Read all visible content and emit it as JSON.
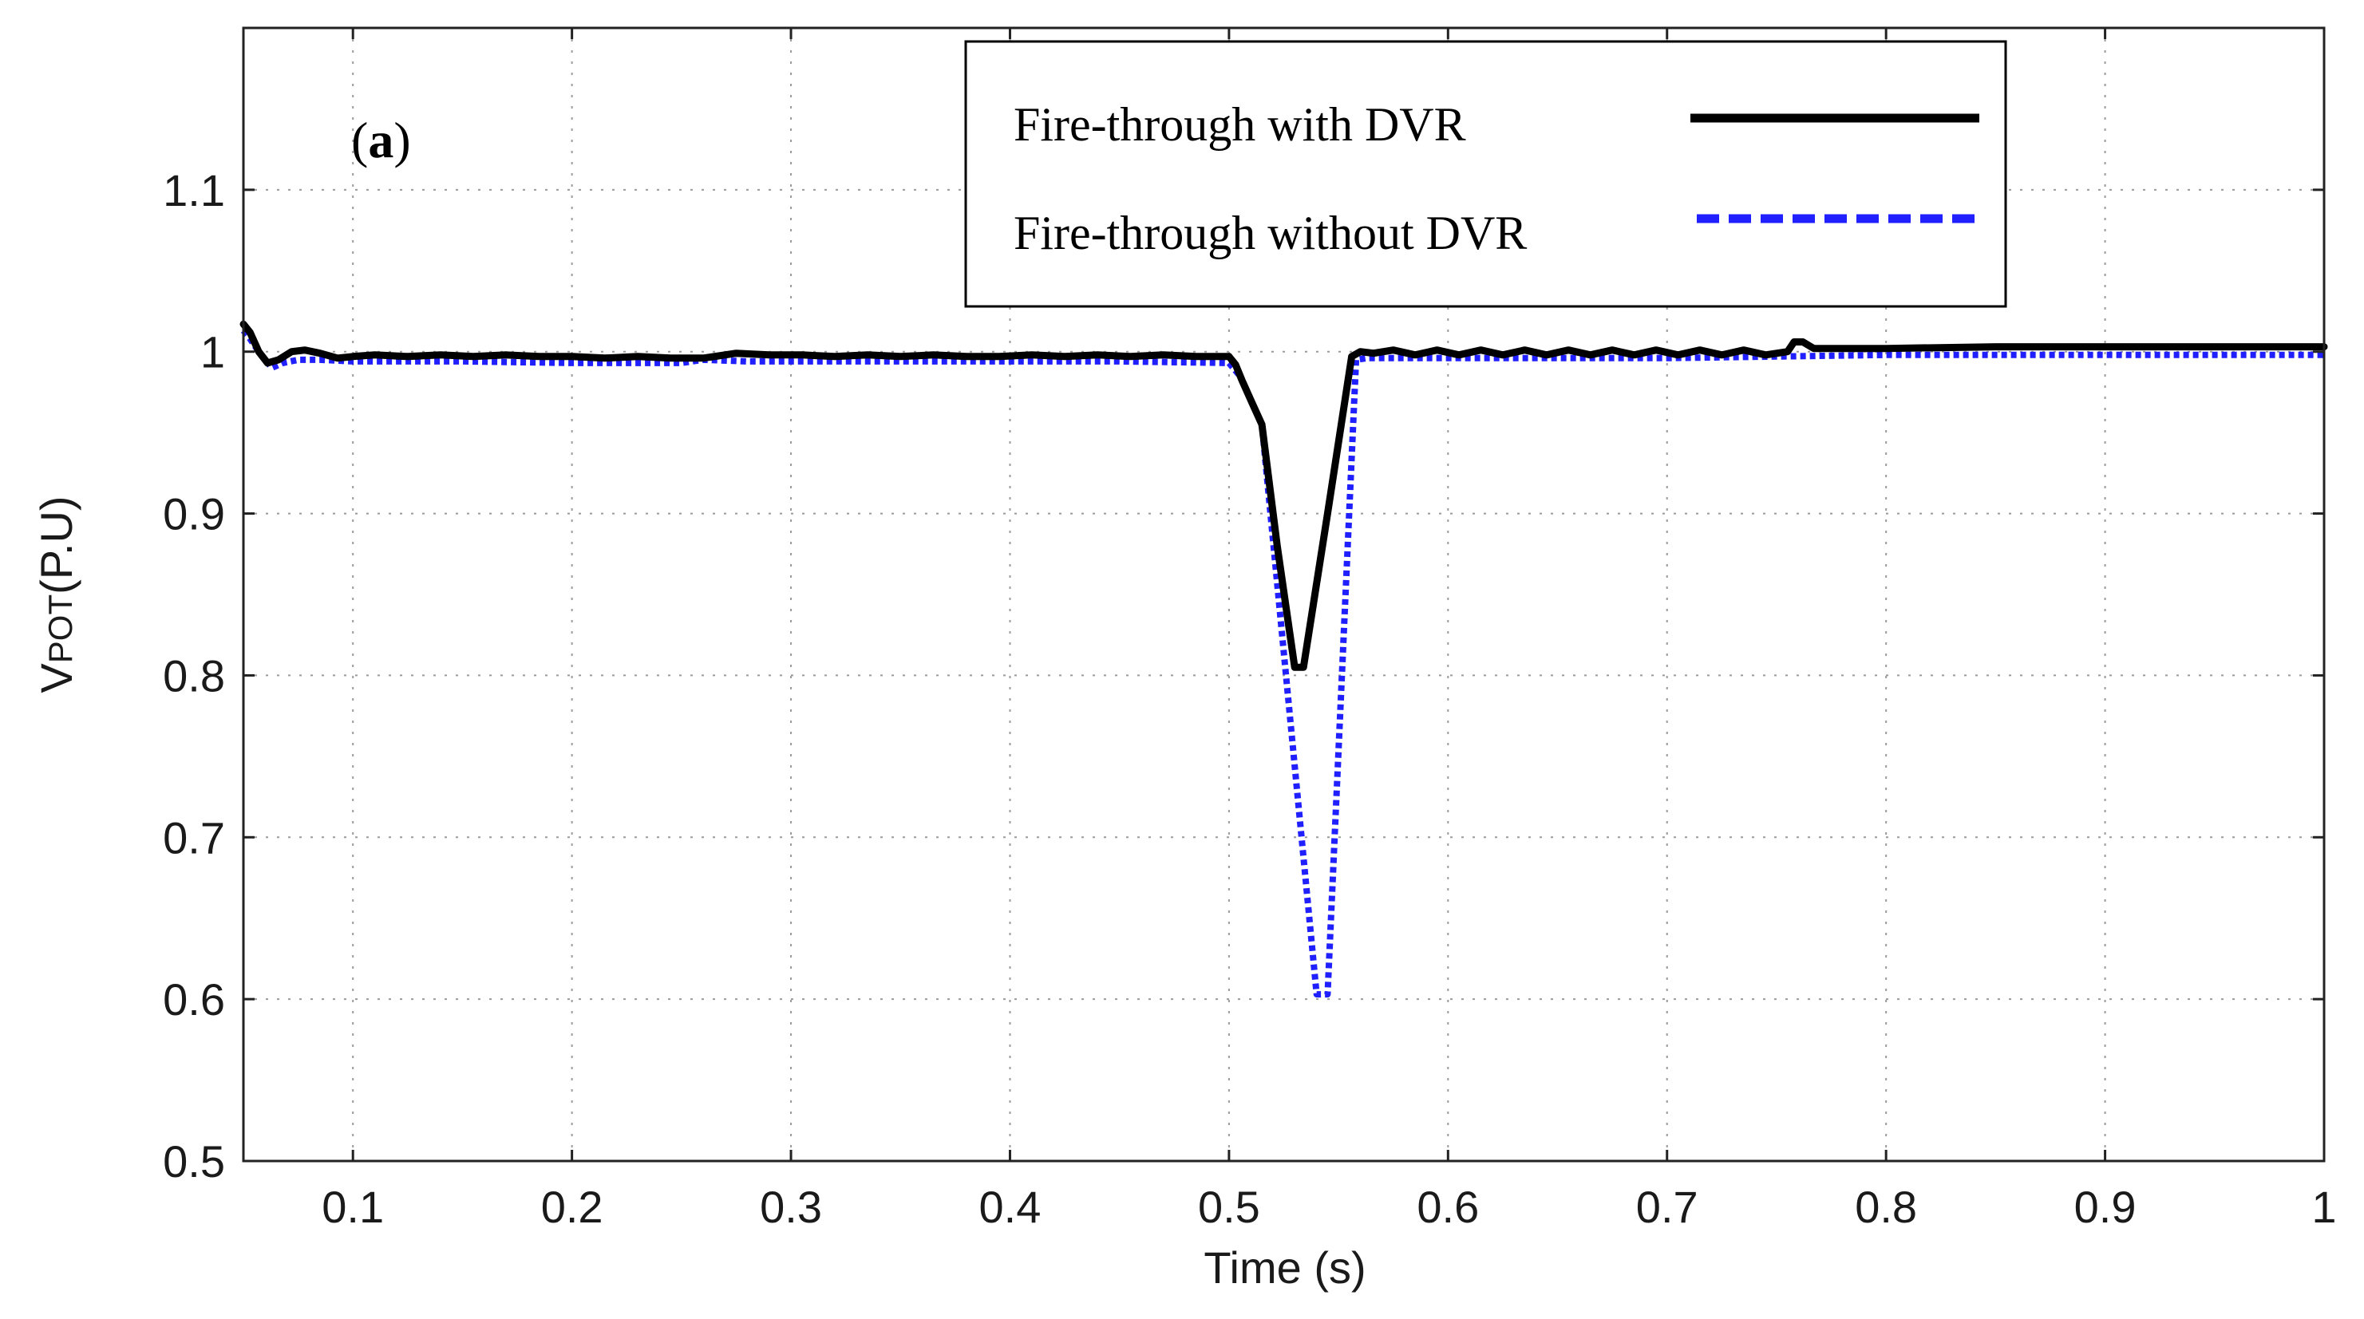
{
  "chart_data": {
    "type": "line",
    "panel_label_open": "(",
    "panel_label_letter": "a",
    "panel_label_close": ")",
    "xlabel": "Time (s)",
    "ylabel_main": "V",
    "ylabel_sub": "POT",
    "ylabel_unit": "(P.U)",
    "xlim": [
      0.05,
      1.0
    ],
    "ylim": [
      0.5,
      1.2
    ],
    "grid": true,
    "legend_position": "top-right",
    "x_ticks": [
      0.1,
      0.2,
      0.3,
      0.4,
      0.5,
      0.6,
      0.7,
      0.8,
      0.9,
      1.0
    ],
    "x_tick_labels": [
      "0.1",
      "0.2",
      "0.3",
      "0.4",
      "0.5",
      "0.6",
      "0.7",
      "0.8",
      "0.9",
      "1"
    ],
    "y_ticks": [
      0.5,
      0.6,
      0.7,
      0.8,
      0.9,
      1.0,
      1.1
    ],
    "y_tick_labels": [
      "0.5",
      "0.6",
      "0.7",
      "0.8",
      "0.9",
      "1",
      "1.1"
    ],
    "series": [
      {
        "name": "Fire-through with DVR",
        "color": "#000000",
        "style": "solid",
        "x": [
          0.05,
          0.053,
          0.057,
          0.061,
          0.066,
          0.072,
          0.078,
          0.085,
          0.093,
          0.1,
          0.11,
          0.125,
          0.14,
          0.155,
          0.17,
          0.185,
          0.2,
          0.215,
          0.23,
          0.245,
          0.26,
          0.275,
          0.29,
          0.305,
          0.32,
          0.335,
          0.35,
          0.365,
          0.38,
          0.395,
          0.41,
          0.425,
          0.44,
          0.455,
          0.47,
          0.485,
          0.5,
          0.503,
          0.506,
          0.51,
          0.515,
          0.522,
          0.53,
          0.534,
          0.545,
          0.556,
          0.56,
          0.566,
          0.575,
          0.585,
          0.595,
          0.605,
          0.615,
          0.625,
          0.635,
          0.645,
          0.655,
          0.665,
          0.675,
          0.685,
          0.695,
          0.705,
          0.715,
          0.725,
          0.735,
          0.745,
          0.755,
          0.758,
          0.762,
          0.767,
          0.775,
          0.8,
          0.85,
          0.9,
          0.95,
          1.0
        ],
        "values": [
          1.017,
          1.012,
          1.0,
          0.993,
          0.995,
          1.0,
          1.001,
          0.999,
          0.996,
          0.997,
          0.998,
          0.997,
          0.998,
          0.997,
          0.998,
          0.997,
          0.997,
          0.996,
          0.997,
          0.996,
          0.996,
          0.999,
          0.998,
          0.998,
          0.997,
          0.998,
          0.997,
          0.998,
          0.997,
          0.997,
          0.998,
          0.997,
          0.998,
          0.997,
          0.998,
          0.997,
          0.997,
          0.992,
          0.982,
          0.97,
          0.955,
          0.88,
          0.805,
          0.805,
          0.9,
          0.997,
          1.0,
          0.999,
          1.001,
          0.998,
          1.001,
          0.998,
          1.001,
          0.998,
          1.001,
          0.998,
          1.001,
          0.998,
          1.001,
          0.998,
          1.001,
          0.998,
          1.001,
          0.998,
          1.001,
          0.998,
          1.0,
          1.006,
          1.006,
          1.002,
          1.002,
          1.002,
          1.003,
          1.003,
          1.003,
          1.003
        ]
      },
      {
        "name": "Fire-through without DVR",
        "color": "#1f1fff",
        "style": "dotted",
        "x": [
          0.05,
          0.053,
          0.058,
          0.063,
          0.068,
          0.075,
          0.085,
          0.1,
          0.15,
          0.2,
          0.25,
          0.26,
          0.28,
          0.35,
          0.4,
          0.45,
          0.5,
          0.505,
          0.51,
          0.515,
          0.54,
          0.545,
          0.558,
          0.563,
          0.6,
          0.65,
          0.7,
          0.75,
          0.8,
          0.9,
          1.0
        ],
        "values": [
          1.013,
          1.008,
          0.998,
          0.99,
          0.993,
          0.995,
          0.995,
          0.994,
          0.994,
          0.993,
          0.993,
          0.995,
          0.994,
          0.994,
          0.994,
          0.994,
          0.993,
          0.985,
          0.97,
          0.955,
          0.603,
          0.603,
          0.995,
          0.996,
          0.996,
          0.996,
          0.996,
          0.997,
          0.998,
          0.998,
          0.998
        ]
      }
    ]
  }
}
